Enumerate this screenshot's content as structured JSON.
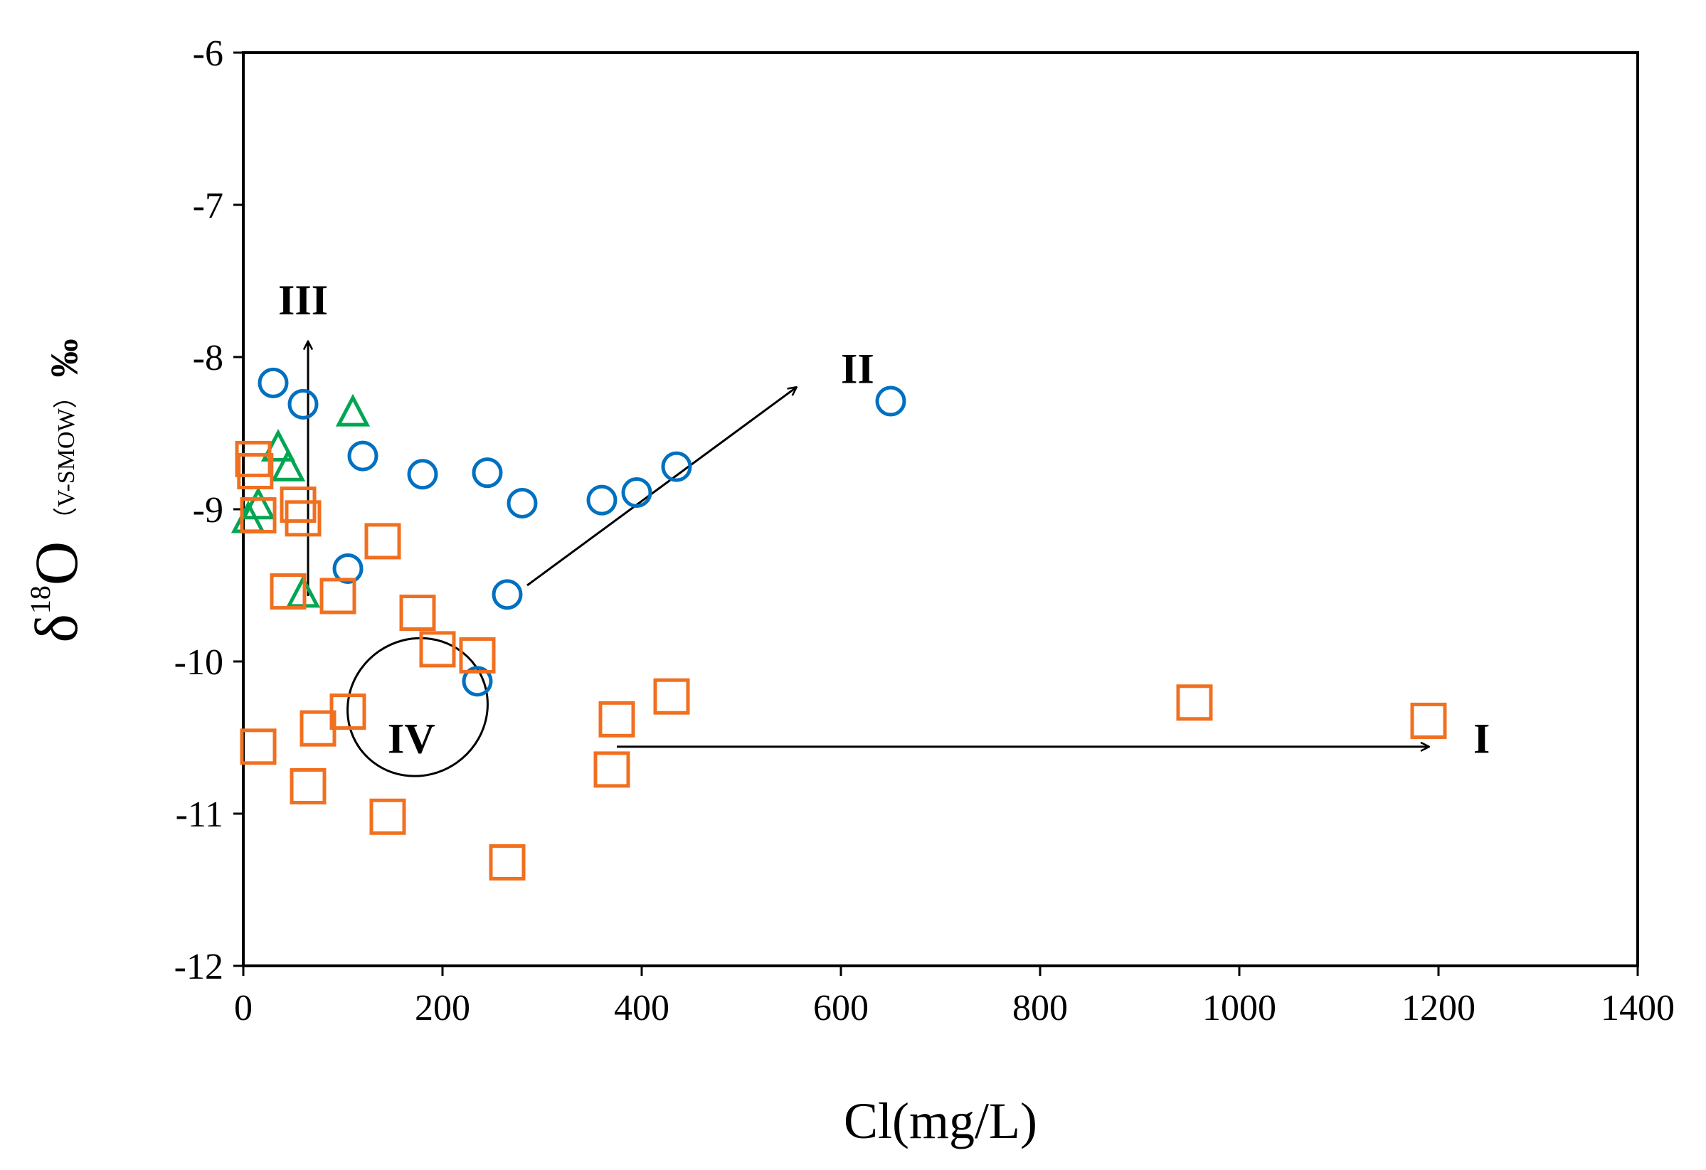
{
  "chart_data": {
    "type": "scatter",
    "title": "",
    "xlabel": "Cl(mg/L)",
    "ylabel": {
      "delta": "δ",
      "superscript": "18",
      "element": "O",
      "standard": "（V-SMOW）",
      "unit": "‰"
    },
    "xlim": [
      0,
      1400
    ],
    "ylim": [
      -12,
      -6
    ],
    "x_ticks": [
      0,
      200,
      400,
      600,
      800,
      1000,
      1200,
      1400
    ],
    "y_ticks": [
      -6,
      -7,
      -8,
      -9,
      -10,
      -11,
      -12
    ],
    "grid": false,
    "legend": "none",
    "series": [
      {
        "name": "circles",
        "marker": "circle",
        "color": "#0070C0",
        "points": [
          [
            30,
            -8.17
          ],
          [
            60,
            -8.31
          ],
          [
            120,
            -8.65
          ],
          [
            180,
            -8.77
          ],
          [
            245,
            -8.76
          ],
          [
            280,
            -8.96
          ],
          [
            360,
            -8.94
          ],
          [
            395,
            -8.89
          ],
          [
            435,
            -8.72
          ],
          [
            650,
            -8.29
          ],
          [
            105,
            -9.39
          ],
          [
            265,
            -9.56
          ],
          [
            235,
            -10.13
          ]
        ]
      },
      {
        "name": "triangles",
        "marker": "triangle",
        "color": "#00A651",
        "points": [
          [
            110,
            -8.37
          ],
          [
            35,
            -8.6
          ],
          [
            45,
            -8.73
          ],
          [
            15,
            -8.98
          ],
          [
            5,
            -9.07
          ],
          [
            60,
            -9.56
          ]
        ]
      },
      {
        "name": "squares",
        "marker": "square",
        "color": "#F07020",
        "points": [
          [
            10,
            -8.67
          ],
          [
            12,
            -8.75
          ],
          [
            15,
            -9.04
          ],
          [
            55,
            -8.97
          ],
          [
            60,
            -9.06
          ],
          [
            140,
            -9.21
          ],
          [
            45,
            -9.54
          ],
          [
            95,
            -9.57
          ],
          [
            175,
            -9.68
          ],
          [
            195,
            -9.92
          ],
          [
            235,
            -9.96
          ],
          [
            105,
            -10.33
          ],
          [
            75,
            -10.44
          ],
          [
            15,
            -10.56
          ],
          [
            65,
            -10.82
          ],
          [
            145,
            -11.02
          ],
          [
            265,
            -11.32
          ],
          [
            375,
            -10.38
          ],
          [
            430,
            -10.23
          ],
          [
            370,
            -10.71
          ],
          [
            955,
            -10.27
          ],
          [
            1190,
            -10.39
          ]
        ]
      }
    ],
    "annotations": [
      {
        "label": "I",
        "from": [
          375,
          -10.56
        ],
        "to": [
          1190,
          -10.56
        ],
        "label_at": [
          1235,
          -10.6
        ]
      },
      {
        "label": "II",
        "from": [
          285,
          -9.5
        ],
        "to": [
          555,
          -8.2
        ],
        "label_at": [
          600,
          -8.17
        ]
      },
      {
        "label": "III",
        "from": [
          65,
          -9.57
        ],
        "to": [
          65,
          -7.9
        ],
        "label_at": [
          35,
          -7.72
        ]
      },
      {
        "label": "IV",
        "ellipse_center": [
          175,
          -10.3
        ],
        "ellipse_radii": [
          115,
          0.72
        ],
        "ellipse_rotation": 55,
        "label_at": [
          145,
          -10.6
        ]
      }
    ]
  }
}
